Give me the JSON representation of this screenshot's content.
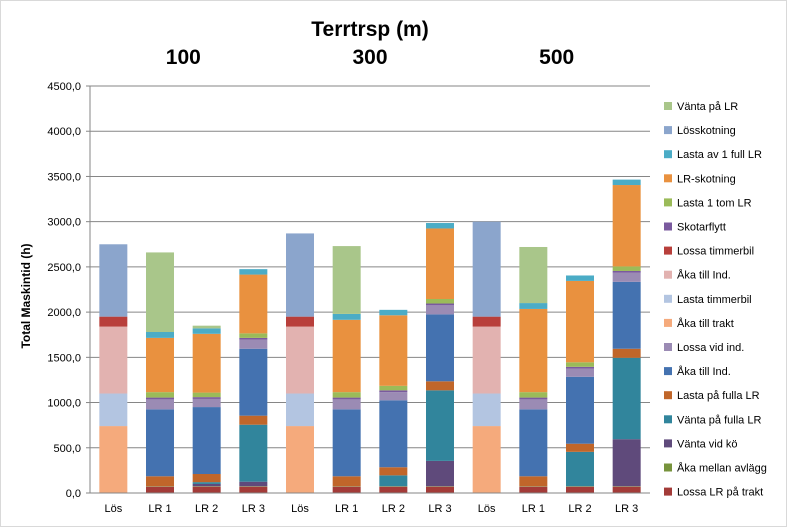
{
  "chart_data": {
    "type": "bar",
    "stacked": true,
    "title": "Terrtrsp (m)",
    "ylabel": "Total Maskintid (h)",
    "xlabel": "",
    "ylim": [
      0,
      4500
    ],
    "ytick_step": 500,
    "yticks": [
      "0,0",
      "500,0",
      "1000,0",
      "1500,0",
      "2000,0",
      "2500,0",
      "3000,0",
      "3500,0",
      "4000,0",
      "4500,0"
    ],
    "grid": true,
    "legend_position": "right",
    "groups": [
      {
        "label": "100",
        "categories": [
          "Lös",
          "LR 1",
          "LR 2",
          "LR 3"
        ]
      },
      {
        "label": "300",
        "categories": [
          "Lös",
          "LR 1",
          "LR 2",
          "LR 3"
        ]
      },
      {
        "label": "500",
        "categories": [
          "Lös",
          "LR 1",
          "LR 2",
          "LR 3"
        ]
      }
    ],
    "categories": [
      "Lös",
      "LR 1",
      "LR 2",
      "LR 3",
      "Lös",
      "LR 1",
      "LR 2",
      "LR 3",
      "Lös",
      "LR 1",
      "LR 2",
      "LR 3"
    ],
    "series": [
      {
        "name": "Lossa LR på trakt",
        "color": "#A33B38",
        "values": [
          0,
          70,
          70,
          70,
          0,
          70,
          70,
          70,
          0,
          70,
          70,
          70
        ]
      },
      {
        "name": "Åka mellan avlägg",
        "color": "#77933C",
        "values": [
          0,
          5,
          5,
          5,
          0,
          5,
          5,
          5,
          0,
          5,
          5,
          5
        ]
      },
      {
        "name": "Vänta vid kö",
        "color": "#5F4A7B",
        "values": [
          0,
          0,
          25,
          50,
          0,
          0,
          0,
          280,
          0,
          0,
          0,
          520
        ]
      },
      {
        "name": "Vänta på fulla LR",
        "color": "#31859C",
        "values": [
          0,
          0,
          20,
          630,
          0,
          0,
          120,
          780,
          0,
          0,
          380,
          900
        ]
      },
      {
        "name": "Lasta på fulla LR",
        "color": "#C0662A",
        "values": [
          0,
          110,
          90,
          100,
          0,
          110,
          90,
          100,
          0,
          110,
          90,
          100
        ]
      },
      {
        "name": "Åka till Ind.",
        "color": "#4472B0",
        "values": [
          0,
          740,
          740,
          740,
          0,
          740,
          740,
          740,
          0,
          740,
          740,
          740
        ]
      },
      {
        "name": "Lossa vid ind.",
        "color": "#9B8BB4",
        "values": [
          0,
          110,
          90,
          100,
          0,
          110,
          90,
          100,
          0,
          110,
          90,
          100
        ]
      },
      {
        "name": "Åka till trakt",
        "color": "#F5AA7C",
        "values": [
          740,
          0,
          0,
          0,
          740,
          0,
          0,
          0,
          740,
          0,
          0,
          0
        ]
      },
      {
        "name": "Lasta timmerbil",
        "color": "#B3C5E1",
        "values": [
          360,
          0,
          0,
          0,
          360,
          0,
          0,
          0,
          360,
          0,
          0,
          0
        ]
      },
      {
        "name": "Åka till Ind.",
        "color": "#E2B2B0",
        "values": [
          740,
          0,
          0,
          0,
          740,
          0,
          0,
          0,
          740,
          0,
          0,
          0
        ]
      },
      {
        "name": "Lossa timmerbil",
        "color": "#B83F3B",
        "values": [
          110,
          0,
          0,
          0,
          110,
          0,
          0,
          0,
          110,
          0,
          0,
          0
        ]
      },
      {
        "name": "Skotarflytt",
        "color": "#7A5A9E",
        "values": [
          0,
          20,
          20,
          20,
          0,
          20,
          20,
          20,
          0,
          20,
          20,
          20
        ]
      },
      {
        "name": "Lasta 1 tom LR",
        "color": "#9BBB59",
        "values": [
          0,
          60,
          50,
          50,
          0,
          60,
          50,
          50,
          0,
          60,
          50,
          50
        ]
      },
      {
        "name": "LR-skotning",
        "color": "#E9913F",
        "values": [
          0,
          600,
          650,
          650,
          0,
          800,
          780,
          780,
          0,
          920,
          900,
          900
        ]
      },
      {
        "name": "Lasta av 1 full LR",
        "color": "#4BACC6",
        "values": [
          0,
          65,
          60,
          60,
          0,
          65,
          60,
          60,
          0,
          65,
          60,
          60
        ]
      },
      {
        "name": "Lösskotning",
        "color": "#8BA5CC",
        "values": [
          800,
          0,
          0,
          0,
          920,
          0,
          0,
          0,
          1050,
          0,
          0,
          0
        ]
      },
      {
        "name": "Vänta på LR",
        "color": "#A9C68A",
        "values": [
          0,
          880,
          30,
          0,
          0,
          750,
          0,
          0,
          0,
          620,
          0,
          0
        ]
      }
    ]
  }
}
